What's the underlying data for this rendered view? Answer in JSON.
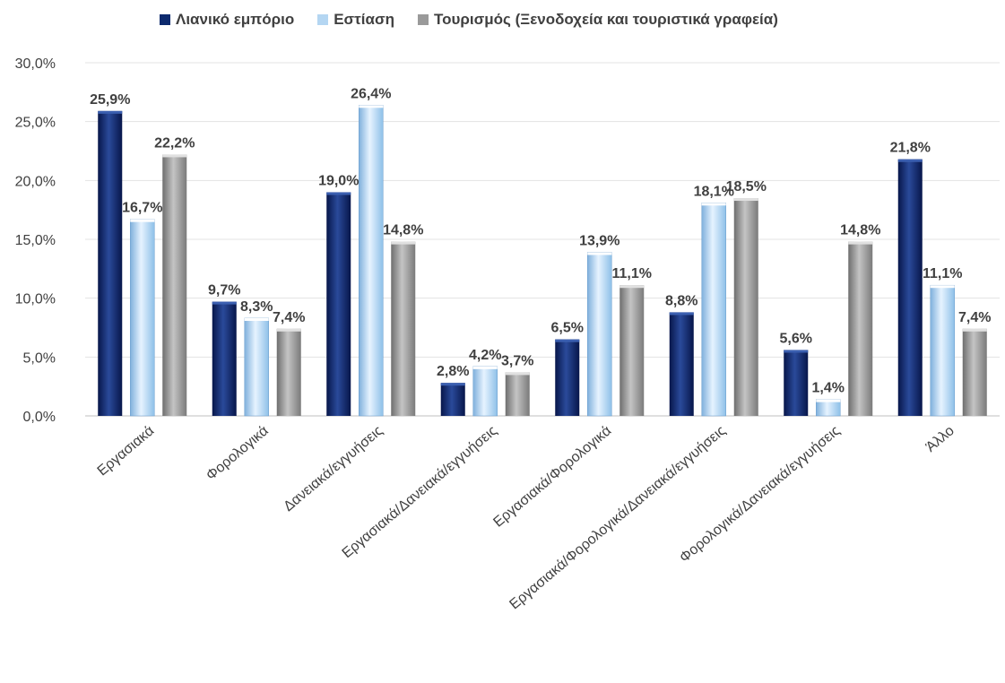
{
  "chart_data": {
    "type": "bar",
    "categories": [
      "Εργασιακά",
      "Φορολογικά",
      "Δανειακά/εγγυήσεις",
      "Εργασιακά/Δανειακά/εγγυήσεις",
      "Εργασιακά/Φορολογικά",
      "Εργασιακά/Φορολογικά/Δανειακά/εγγυήσεις",
      "Φορολογικά/Δανειακά/εγγυήσεις",
      "Άλλο"
    ],
    "series": [
      {
        "name": "Λιανικό εμπόριο",
        "color": "#0d2a6e",
        "values": [
          25.9,
          9.7,
          19.0,
          2.8,
          6.5,
          8.8,
          5.6,
          21.8
        ],
        "labels": [
          "25,9%",
          "9,7%",
          "19,0%",
          "2,8%",
          "6,5%",
          "8,8%",
          "5,6%",
          "21,8%"
        ]
      },
      {
        "name": "Εστίαση",
        "color": "#b4d6f2",
        "values": [
          16.7,
          8.3,
          26.4,
          4.2,
          13.9,
          18.1,
          1.4,
          11.1
        ],
        "labels": [
          "16,7%",
          "8,3%",
          "26,4%",
          "4,2%",
          "13,9%",
          "18,1%",
          "1,4%",
          "11,1%"
        ]
      },
      {
        "name": "Τουρισμός (Ξενοδοχεία και τουριστικά γραφεία)",
        "color": "#9a9a9a",
        "values": [
          22.2,
          7.4,
          14.8,
          3.7,
          11.1,
          18.5,
          14.8,
          7.4
        ],
        "labels": [
          "22,2%",
          "7,4%",
          "14,8%",
          "3,7%",
          "11,1%",
          "18,5%",
          "14,8%",
          "7,4%"
        ]
      }
    ],
    "yticks": [
      "0,0%",
      "5,0%",
      "10,0%",
      "15,0%",
      "20,0%",
      "25,0%",
      "30,0%"
    ],
    "ylim": [
      0,
      30
    ],
    "grid": true,
    "legend_position": "top",
    "title": "",
    "xlabel": "",
    "ylabel": ""
  }
}
